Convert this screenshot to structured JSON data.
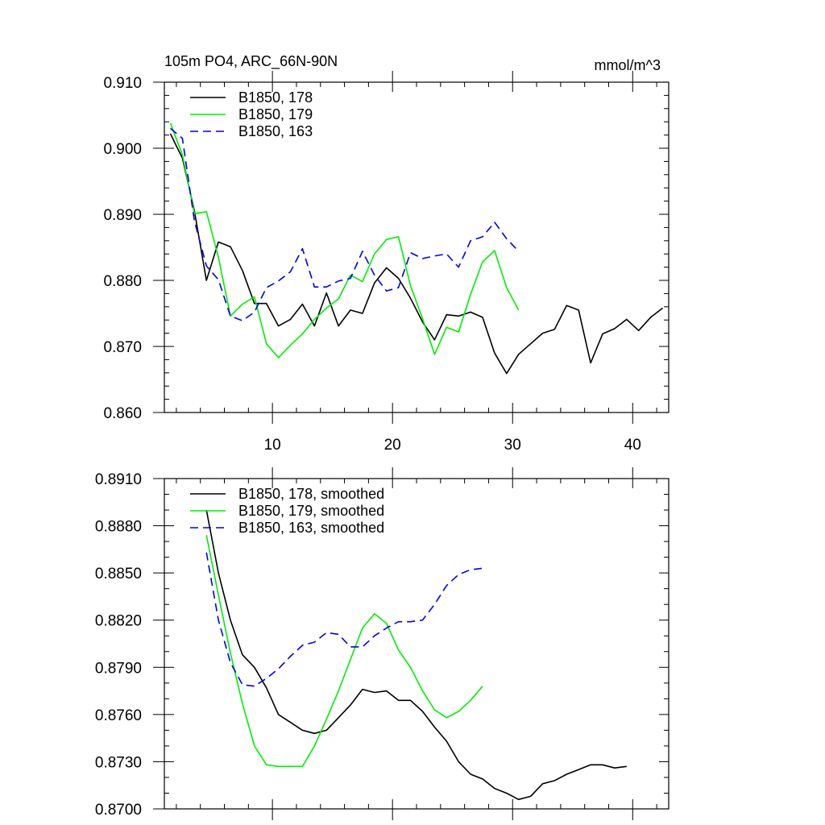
{
  "chart_data": [
    {
      "type": "line",
      "title": "105m PO4, ARC_66N-90N",
      "units": "mmol/m^3",
      "xlabel": "",
      "ylabel": "",
      "xlim": [
        1,
        43
      ],
      "ylim": [
        0.86,
        0.91
      ],
      "x_ticks": [
        10,
        20,
        30,
        40
      ],
      "x_tick_labels": [
        "10",
        "20",
        "30",
        "40"
      ],
      "y_ticks": [
        0.86,
        0.87,
        0.88,
        0.89,
        0.9,
        0.91
      ],
      "y_tick_labels": [
        "0.860",
        "0.870",
        "0.880",
        "0.890",
        "0.900",
        "0.910"
      ],
      "legend_position": "top-left",
      "series": [
        {
          "name": "B1850, 178",
          "color": "#000000",
          "dash": "solid",
          "x": [
            1.5,
            2.5,
            3.5,
            4.5,
            5.5,
            6.5,
            7.5,
            8.5,
            9.5,
            10.5,
            11.5,
            12.5,
            13.5,
            14.5,
            15.5,
            16.5,
            17.5,
            18.5,
            19.5,
            20.5,
            21.5,
            22.5,
            23.5,
            24.5,
            25.5,
            26.5,
            27.5,
            28.5,
            29.5,
            30.5,
            31.5,
            32.5,
            33.5,
            34.5,
            35.5,
            36.5,
            37.5,
            38.5,
            39.5,
            40.5,
            41.5,
            42.5
          ],
          "values": [
            0.9022,
            0.8985,
            0.8905,
            0.88,
            0.8858,
            0.8851,
            0.8815,
            0.8765,
            0.8765,
            0.8731,
            0.8741,
            0.8764,
            0.8731,
            0.8781,
            0.8731,
            0.8755,
            0.875,
            0.8796,
            0.8819,
            0.8803,
            0.8773,
            0.8737,
            0.871,
            0.8748,
            0.8746,
            0.8752,
            0.8744,
            0.869,
            0.8659,
            0.8688,
            0.8704,
            0.872,
            0.8726,
            0.8762,
            0.8755,
            0.8675,
            0.8719,
            0.8727,
            0.8741,
            0.8724,
            0.8744,
            0.8758
          ]
        },
        {
          "name": "B1850, 179",
          "color": "#00ee00",
          "dash": "solid",
          "x": [
            1.5,
            2.5,
            3.5,
            4.5,
            5.5,
            6.5,
            7.5,
            8.5,
            9.5,
            10.5,
            11.5,
            12.5,
            13.5,
            14.5,
            15.5,
            16.5,
            17.5,
            18.5,
            19.5,
            20.5,
            21.5,
            22.5,
            23.5,
            24.5,
            25.5,
            26.5,
            27.5,
            28.5,
            29.5,
            30.5
          ],
          "values": [
            0.9038,
            0.899,
            0.8901,
            0.8904,
            0.8835,
            0.8746,
            0.8764,
            0.8775,
            0.8704,
            0.8683,
            0.8702,
            0.8719,
            0.8741,
            0.8758,
            0.8772,
            0.8808,
            0.8798,
            0.884,
            0.8862,
            0.8866,
            0.8792,
            0.8742,
            0.8688,
            0.8729,
            0.8722,
            0.8779,
            0.8828,
            0.8845,
            0.8789,
            0.8755
          ]
        },
        {
          "name": "B1850, 163",
          "color": "#0000ee",
          "dash": "dashed",
          "x": [
            1.5,
            2.5,
            3.5,
            4.5,
            5.5,
            6.5,
            7.5,
            8.5,
            9.5,
            10.5,
            11.5,
            12.5,
            13.5,
            14.5,
            15.5,
            16.5,
            17.5,
            18.5,
            19.5,
            20.5,
            21.5,
            22.5,
            23.5,
            24.5,
            25.5,
            26.5,
            27.5,
            28.5,
            29.5,
            30.5
          ],
          "values": [
            0.903,
            0.9015,
            0.889,
            0.8822,
            0.8801,
            0.8746,
            0.8739,
            0.8752,
            0.8789,
            0.8799,
            0.8813,
            0.8848,
            0.879,
            0.879,
            0.8799,
            0.8803,
            0.8844,
            0.8808,
            0.8784,
            0.8789,
            0.8842,
            0.8833,
            0.8837,
            0.884,
            0.882,
            0.886,
            0.8866,
            0.8888,
            0.8863,
            0.8844
          ]
        }
      ]
    },
    {
      "type": "line",
      "title": "",
      "xlabel": "",
      "ylabel": "",
      "xlim": [
        1,
        43
      ],
      "ylim": [
        0.87,
        0.891
      ],
      "x_ticks": [
        10,
        20,
        30,
        40
      ],
      "x_tick_labels": [
        "",
        "",
        "",
        ""
      ],
      "y_ticks": [
        0.87,
        0.873,
        0.876,
        0.879,
        0.882,
        0.885,
        0.888,
        0.891
      ],
      "y_tick_labels": [
        "0.8700",
        "0.8730",
        "0.8760",
        "0.8790",
        "0.8820",
        "0.8850",
        "0.8880",
        "0.8910"
      ],
      "legend_position": "top-left",
      "series": [
        {
          "name": "B1850, 178, smoothed",
          "color": "#000000",
          "dash": "solid",
          "x": [
            4.5,
            5.5,
            6.5,
            7.5,
            8.5,
            9.5,
            10.5,
            11.5,
            12.5,
            13.5,
            14.5,
            15.5,
            16.5,
            17.5,
            18.5,
            19.5,
            20.5,
            21.5,
            22.5,
            23.5,
            24.5,
            25.5,
            26.5,
            27.5,
            28.5,
            29.5,
            30.5,
            31.5,
            32.5,
            33.5,
            34.5,
            35.5,
            36.5,
            37.5,
            38.5,
            39.5
          ],
          "values": [
            0.889,
            0.885,
            0.882,
            0.8798,
            0.879,
            0.8777,
            0.876,
            0.8755,
            0.875,
            0.8748,
            0.875,
            0.8758,
            0.8766,
            0.8776,
            0.8774,
            0.8775,
            0.8769,
            0.8769,
            0.8762,
            0.8752,
            0.8743,
            0.873,
            0.8722,
            0.8719,
            0.8713,
            0.871,
            0.8706,
            0.8708,
            0.8716,
            0.8718,
            0.8722,
            0.8725,
            0.8728,
            0.8728,
            0.8726,
            0.8727
          ]
        },
        {
          "name": "B1850, 179, smoothed",
          "color": "#00ee00",
          "dash": "solid",
          "x": [
            4.5,
            5.5,
            6.5,
            7.5,
            8.5,
            9.5,
            10.5,
            11.5,
            12.5,
            13.5,
            14.5,
            15.5,
            16.5,
            17.5,
            18.5,
            19.5,
            20.5,
            21.5,
            22.5,
            23.5,
            24.5,
            25.5,
            26.5,
            27.5
          ],
          "values": [
            0.8874,
            0.8836,
            0.8799,
            0.8767,
            0.874,
            0.8728,
            0.8727,
            0.8727,
            0.8727,
            0.874,
            0.8757,
            0.8775,
            0.8795,
            0.8815,
            0.8824,
            0.8818,
            0.8801,
            0.879,
            0.8775,
            0.8763,
            0.8758,
            0.8762,
            0.8769,
            0.8778
          ]
        },
        {
          "name": "B1850, 163, smoothed",
          "color": "#0000ee",
          "dash": "dashed",
          "x": [
            4.5,
            5.5,
            6.5,
            7.5,
            8.5,
            9.5,
            10.5,
            11.5,
            12.5,
            13.5,
            14.5,
            15.5,
            16.5,
            17.5,
            18.5,
            19.5,
            20.5,
            21.5,
            22.5,
            23.5,
            24.5,
            25.5,
            26.5,
            27.5
          ],
          "values": [
            0.8863,
            0.882,
            0.8793,
            0.8779,
            0.8778,
            0.8783,
            0.8789,
            0.8797,
            0.8804,
            0.8806,
            0.8812,
            0.8811,
            0.8803,
            0.8803,
            0.881,
            0.8815,
            0.8819,
            0.8819,
            0.882,
            0.883,
            0.8842,
            0.8849,
            0.8852,
            0.8853
          ]
        }
      ]
    }
  ]
}
